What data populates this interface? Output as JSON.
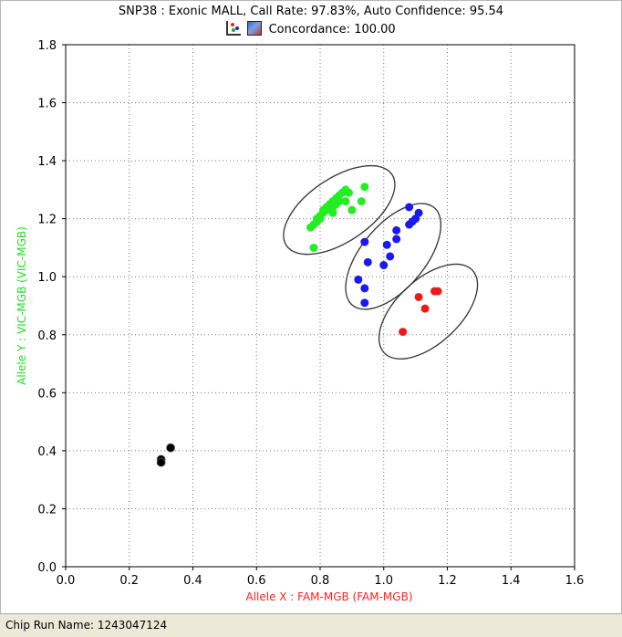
{
  "header": {
    "title": "SNP38 : Exonic MALL, Call Rate: 97.83%, Auto Confidence: 95.54",
    "concordance": "Concordance: 100.00",
    "icons": [
      "scatter-plot-icon",
      "image-icon"
    ]
  },
  "status_bar": {
    "label": "Chip Run Name: 1243047124"
  },
  "chart_data": {
    "type": "scatter",
    "title": "SNP38 : Exonic MALL, Call Rate: 97.83%, Auto Confidence: 95.54",
    "xlabel": "Allele X : FAM-MGB (FAM-MGB)",
    "ylabel": "Allele Y : VIC-MGB (VIC-MGB)",
    "xlabel_color": "#ff2020",
    "ylabel_color": "#22dd22",
    "xlim": [
      0.0,
      1.6
    ],
    "ylim": [
      0.0,
      1.8
    ],
    "x_ticks": [
      "0.0",
      "0.2",
      "0.4",
      "0.6",
      "0.8",
      "1.0",
      "1.2",
      "1.4",
      "1.6"
    ],
    "y_ticks": [
      "0.0",
      "0.2",
      "0.4",
      "0.6",
      "0.8",
      "1.0",
      "1.2",
      "1.4",
      "1.6",
      "1.8"
    ],
    "grid": "dotted",
    "series": [
      {
        "color": "#22ee22",
        "points": [
          [
            0.77,
            1.17
          ],
          [
            0.78,
            1.18
          ],
          [
            0.79,
            1.19
          ],
          [
            0.79,
            1.2
          ],
          [
            0.8,
            1.2
          ],
          [
            0.8,
            1.21
          ],
          [
            0.81,
            1.22
          ],
          [
            0.81,
            1.23
          ],
          [
            0.82,
            1.24
          ],
          [
            0.82,
            1.23
          ],
          [
            0.83,
            1.25
          ],
          [
            0.84,
            1.26
          ],
          [
            0.84,
            1.24
          ],
          [
            0.85,
            1.27
          ],
          [
            0.85,
            1.25
          ],
          [
            0.86,
            1.28
          ],
          [
            0.86,
            1.26
          ],
          [
            0.87,
            1.29
          ],
          [
            0.88,
            1.3
          ],
          [
            0.89,
            1.29
          ],
          [
            0.88,
            1.26
          ],
          [
            0.9,
            1.23
          ],
          [
            0.93,
            1.26
          ],
          [
            0.94,
            1.31
          ],
          [
            0.84,
            1.22
          ],
          [
            0.78,
            1.1
          ]
        ]
      },
      {
        "color": "#1a1aee",
        "points": [
          [
            1.08,
            1.24
          ],
          [
            1.11,
            1.22
          ],
          [
            1.1,
            1.2
          ],
          [
            1.09,
            1.19
          ],
          [
            1.08,
            1.18
          ],
          [
            1.04,
            1.16
          ],
          [
            1.01,
            1.11
          ],
          [
            1.04,
            1.13
          ],
          [
            0.94,
            1.12
          ],
          [
            1.02,
            1.07
          ],
          [
            0.95,
            1.05
          ],
          [
            1.0,
            1.04
          ],
          [
            0.92,
            0.99
          ],
          [
            0.94,
            0.96
          ],
          [
            0.94,
            0.91
          ]
        ]
      },
      {
        "color": "#ee1a1a",
        "points": [
          [
            1.16,
            0.95
          ],
          [
            1.17,
            0.95
          ],
          [
            1.11,
            0.93
          ],
          [
            1.13,
            0.89
          ],
          [
            1.06,
            0.81
          ]
        ]
      },
      {
        "color": "#000000",
        "points": [
          [
            0.33,
            0.41
          ],
          [
            0.3,
            0.37
          ],
          [
            0.3,
            0.36
          ]
        ]
      }
    ],
    "ellipses": [
      {
        "cx": 0.86,
        "cy": 1.23,
        "rx": 0.2,
        "ry": 0.1,
        "angle_deg": 34
      },
      {
        "cx": 1.03,
        "cy": 1.07,
        "rx": 0.2,
        "ry": 0.1,
        "angle_deg": 50
      },
      {
        "cx": 1.14,
        "cy": 0.88,
        "rx": 0.19,
        "ry": 0.1,
        "angle_deg": 43
      }
    ]
  }
}
